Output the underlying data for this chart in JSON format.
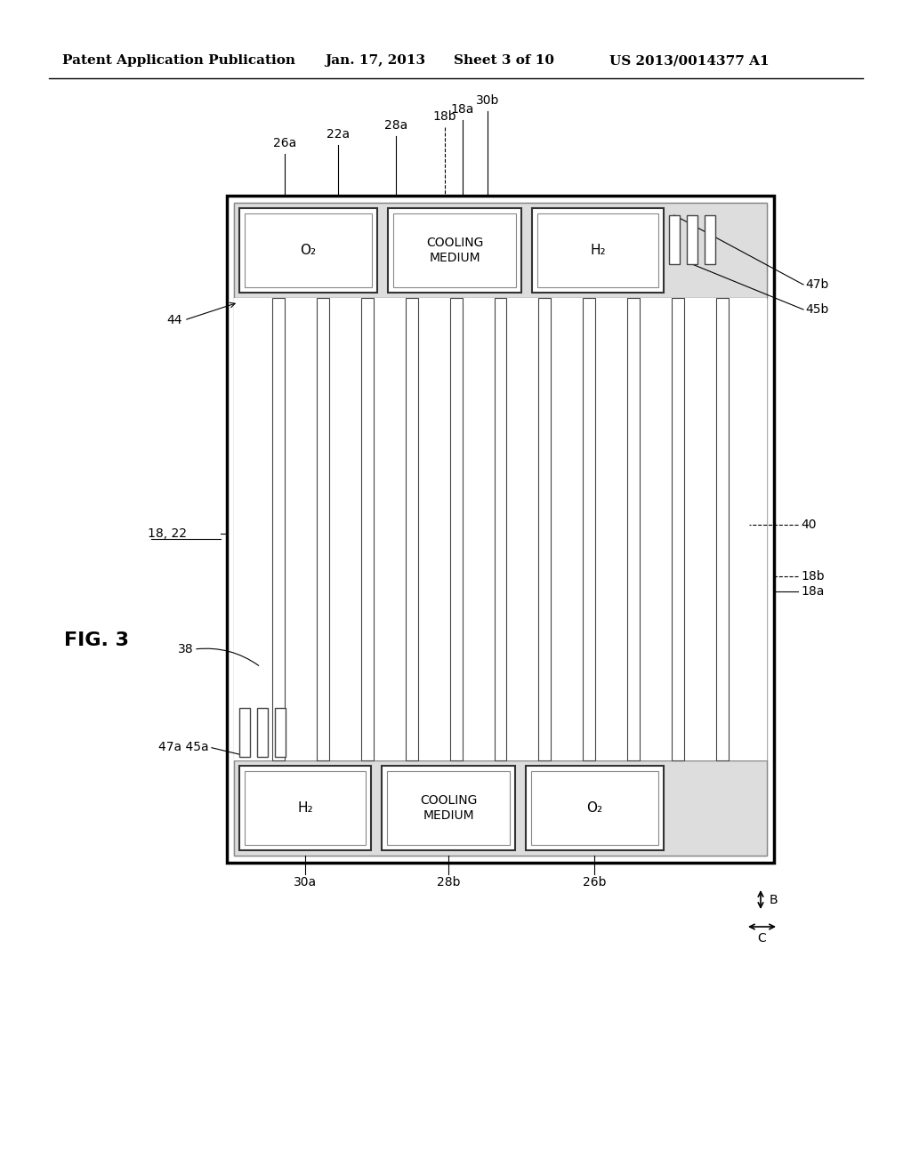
{
  "bg_color": "#ffffff",
  "header_text": "Patent Application Publication",
  "header_date": "Jan. 17, 2013",
  "header_sheet": "Sheet 3 of 10",
  "header_patent": "US 2013/0014377 A1",
  "fig_label": "FIG. 3",
  "line_color": "#000000"
}
